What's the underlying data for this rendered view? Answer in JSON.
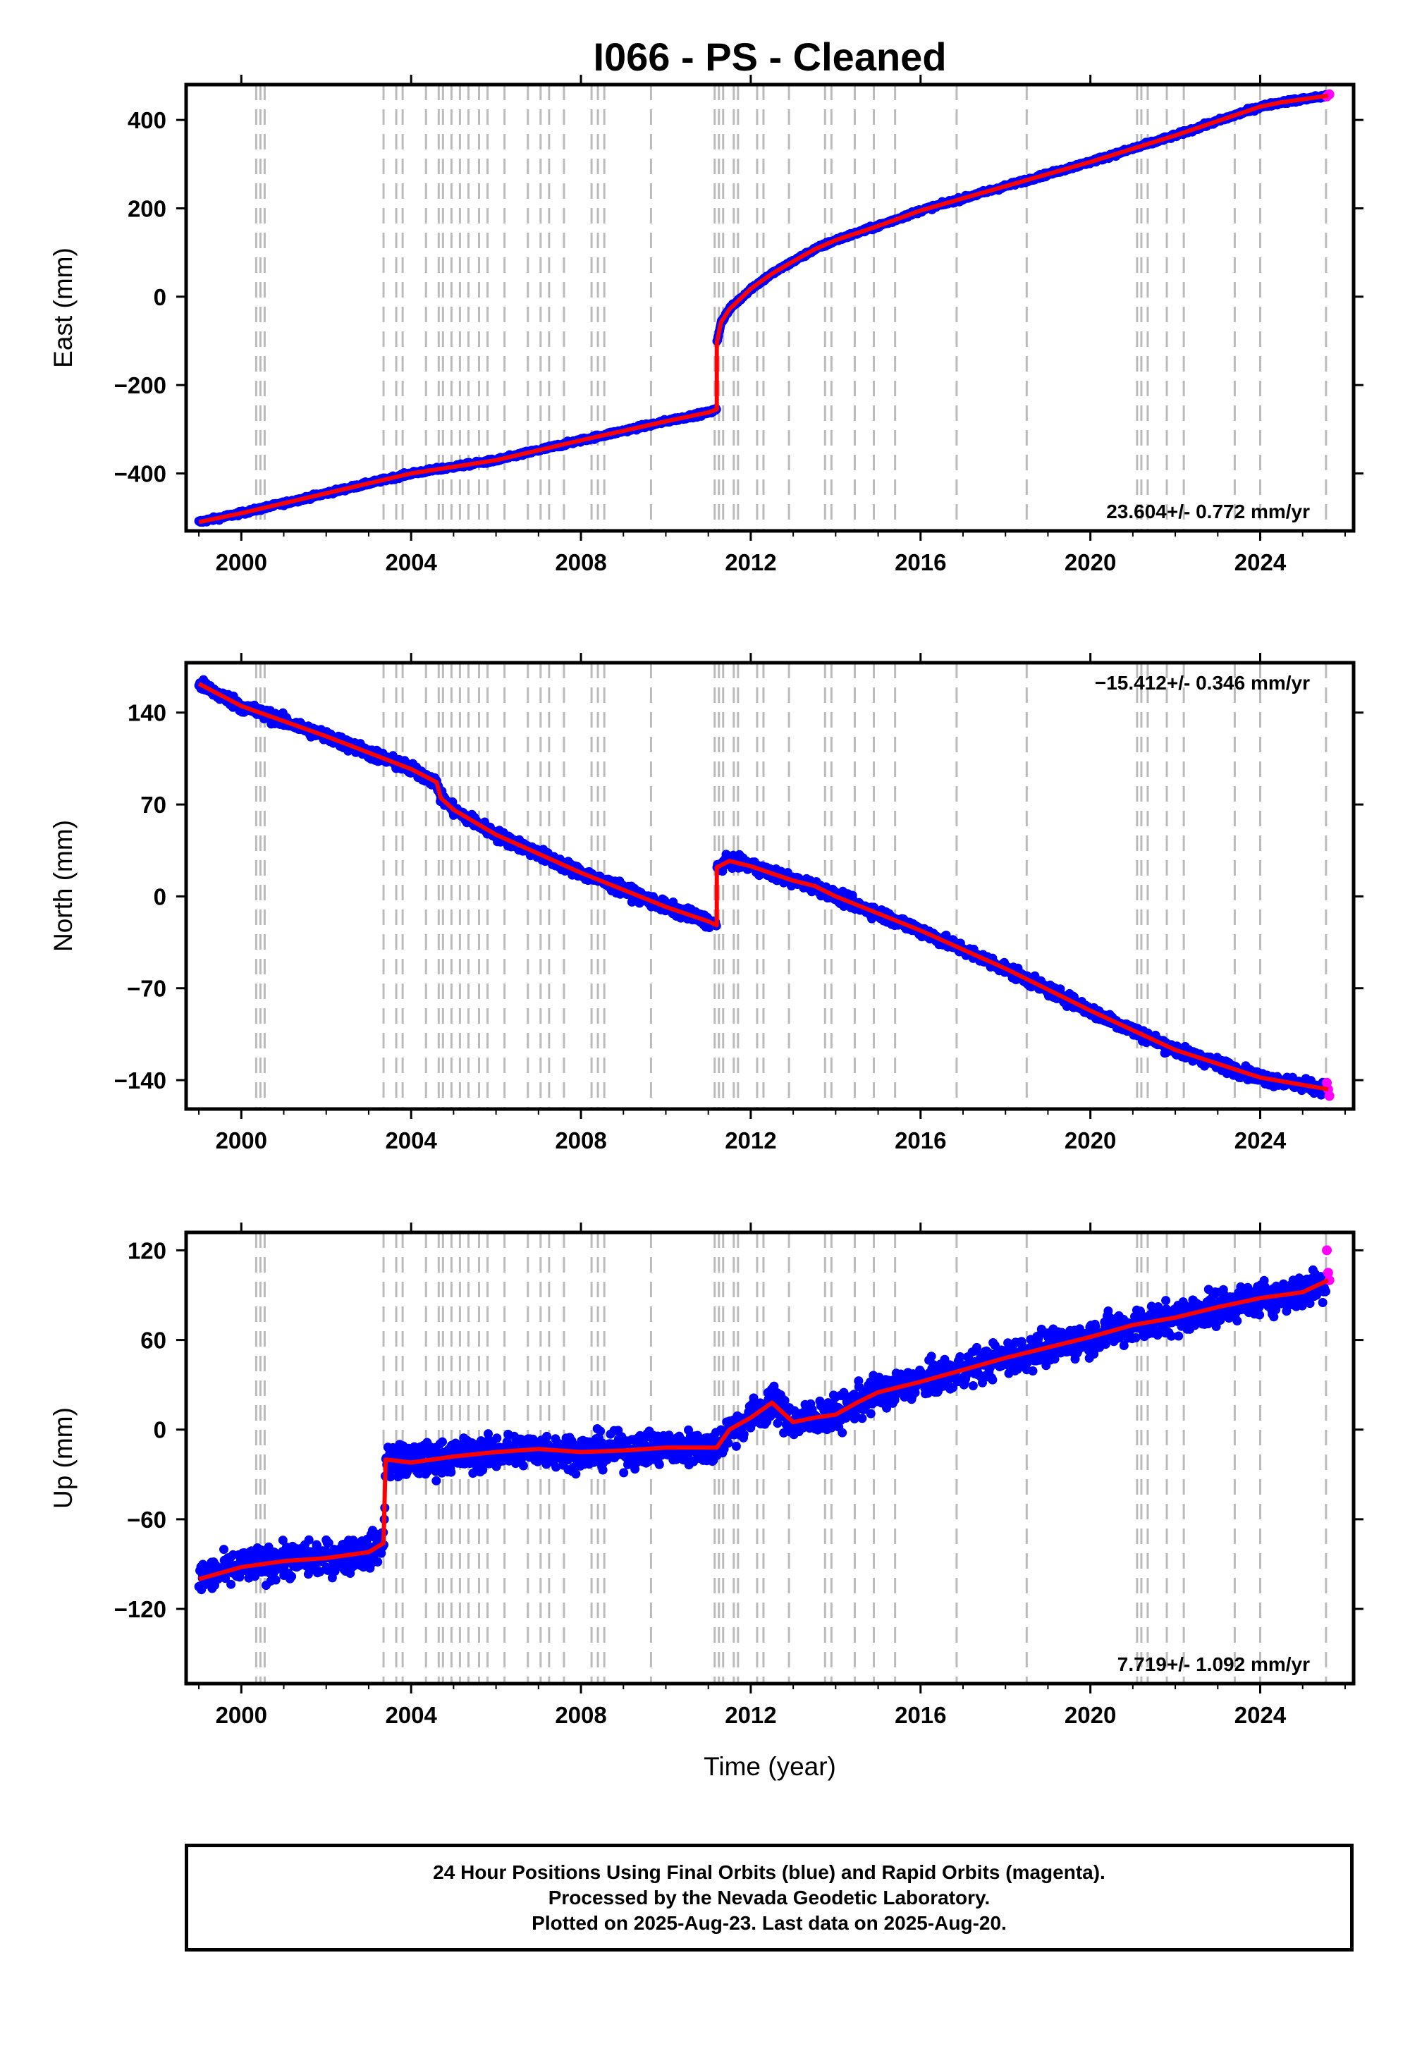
{
  "title": "I066  - PS - Cleaned",
  "colors": {
    "final_orbits": "#0000ff",
    "rapid_orbits": "#ff00ff",
    "model": "#ff0000",
    "offsets": "#bbbbbb"
  },
  "footer": {
    "line1": "24 Hour Positions Using Final Orbits (blue) and Rapid Orbits (magenta).",
    "line2": "Processed by the Nevada Geodetic Laboratory.",
    "line3": "Plotted on 2025-Aug-23. Last data on 2025-Aug-20."
  },
  "chart_data": [
    {
      "type": "scatter",
      "ylabel": "East (mm)",
      "xlabel": "",
      "xlim": [
        1998.7,
        2026.2
      ],
      "ylim": [
        -530,
        480
      ],
      "xticks": [
        2000,
        2004,
        2008,
        2012,
        2016,
        2020,
        2024
      ],
      "yticks": [
        -400,
        -200,
        0,
        200,
        400
      ],
      "rate_label": "23.604+/- 0.772 mm/yr",
      "rate_position": "bottom-right",
      "model_x": [
        1999.0,
        2000.0,
        2002.0,
        2004.0,
        2006.0,
        2008.0,
        2010.0,
        2011.0,
        2011.2,
        2011.2,
        2011.3,
        2011.5,
        2012.0,
        2012.5,
        2013.0,
        2013.5,
        2014.0,
        2015.0,
        2016.0,
        2018.0,
        2020.0,
        2022.0,
        2024.0,
        2024.5,
        2025.6
      ],
      "model_y": [
        -510,
        -490,
        -445,
        -400,
        -370,
        -325,
        -282,
        -262,
        -255,
        -105,
        -58,
        -28,
        18,
        52,
        80,
        107,
        128,
        160,
        195,
        250,
        305,
        365,
        430,
        440,
        455
      ],
      "final_orbits": {
        "x": [
          1999.0,
          2000.0,
          2001.0,
          2002.0,
          2003.0,
          2004.0,
          2005.0,
          2006.0,
          2007.0,
          2008.0,
          2009.0,
          2010.0,
          2011.0,
          2011.2,
          2011.5,
          2012.0,
          2012.5,
          2013.0,
          2014.0,
          2015.0,
          2016.0,
          2017.0,
          2018.0,
          2019.0,
          2020.0,
          2021.0,
          2022.0,
          2023.0,
          2024.0,
          2025.0,
          2025.55
        ],
        "y": [
          -510,
          -488,
          -465,
          -445,
          -422,
          -400,
          -385,
          -368,
          -345,
          -325,
          -305,
          -282,
          -265,
          -250,
          -28,
          18,
          52,
          80,
          128,
          160,
          195,
          225,
          250,
          280,
          305,
          335,
          365,
          400,
          430,
          450,
          455
        ]
      },
      "rapid_orbits": {
        "x": [
          2025.57,
          2025.6,
          2025.63
        ],
        "y": [
          453,
          456,
          458
        ]
      }
    },
    {
      "type": "scatter",
      "ylabel": "North (mm)",
      "xlabel": "",
      "xlim": [
        1998.7,
        2026.2
      ],
      "ylim": [
        -162,
        178
      ],
      "xticks": [
        2000,
        2004,
        2008,
        2012,
        2016,
        2020,
        2024
      ],
      "yticks": [
        -140,
        -70,
        0,
        70,
        140
      ],
      "rate_label": "-15.412+/- 0.346 mm/yr",
      "rate_position": "top-right",
      "model_x": [
        1999.0,
        2000.0,
        2002.0,
        2004.0,
        2004.6,
        2004.7,
        2005.0,
        2006.0,
        2008.0,
        2010.0,
        2011.0,
        2011.2,
        2011.2,
        2011.5,
        2012.0,
        2013.0,
        2013.5,
        2014.0,
        2016.0,
        2018.0,
        2020.0,
        2022.0,
        2024.0,
        2025.6
      ],
      "model_y": [
        162,
        145,
        122,
        97,
        87,
        75,
        66,
        47,
        18,
        -8,
        -19,
        -22,
        22,
        27,
        23,
        12,
        8,
        0,
        -26,
        -55,
        -87,
        -117,
        -138,
        -147
      ],
      "final_orbits": {
        "x": [
          1999.0,
          2000.0,
          2001.0,
          2002.0,
          2003.0,
          2004.0,
          2005.0,
          2006.0,
          2007.0,
          2008.0,
          2009.0,
          2010.0,
          2011.0,
          2011.2,
          2011.5,
          2012.0,
          2012.5,
          2013.0,
          2014.0,
          2015.0,
          2016.0,
          2017.0,
          2018.0,
          2019.0,
          2020.0,
          2021.0,
          2022.0,
          2023.0,
          2024.0,
          2025.0,
          2025.55
        ],
        "y": [
          162,
          146,
          134,
          122,
          110,
          97,
          66,
          47,
          32,
          18,
          5,
          -8,
          -19,
          -22,
          28,
          23,
          18,
          12,
          0,
          -12,
          -26,
          -42,
          -55,
          -70,
          -87,
          -102,
          -117,
          -128,
          -138,
          -144,
          -147
        ]
      },
      "rapid_orbits": {
        "x": [
          2025.57,
          2025.6,
          2025.63
        ],
        "y": [
          -142,
          -147,
          -152
        ]
      }
    },
    {
      "type": "scatter",
      "ylabel": "Up (mm)",
      "xlabel": "Time (year)",
      "xlim": [
        1998.7,
        2026.2
      ],
      "ylim": [
        -170,
        132
      ],
      "xticks": [
        2000,
        2004,
        2008,
        2012,
        2016,
        2020,
        2024
      ],
      "yticks": [
        -120,
        -60,
        0,
        60,
        120
      ],
      "rate_label": "7.719+/- 1.092 mm/yr",
      "rate_position": "bottom-right",
      "model_x": [
        1999.0,
        2000.0,
        2001.0,
        2002.0,
        2003.0,
        2003.35,
        2003.4,
        2004.0,
        2005.0,
        2006.0,
        2007.0,
        2008.0,
        2009.0,
        2010.0,
        2011.0,
        2011.2,
        2011.5,
        2012.0,
        2012.5,
        2013.0,
        2013.5,
        2014.0,
        2014.5,
        2015.0,
        2016.0,
        2017.0,
        2018.0,
        2019.0,
        2020.0,
        2021.0,
        2022.0,
        2023.0,
        2024.0,
        2025.0,
        2025.6
      ],
      "model_y": [
        -100,
        -92,
        -88,
        -86,
        -82,
        -76,
        -20,
        -22,
        -18,
        -15,
        -13,
        -15,
        -14,
        -12,
        -12,
        -12,
        0,
        8,
        18,
        5,
        8,
        10,
        18,
        25,
        32,
        40,
        48,
        55,
        62,
        70,
        75,
        82,
        88,
        92,
        100
      ],
      "final_orbits": {
        "x": [
          1999.0,
          2000.0,
          2001.0,
          2002.0,
          2003.0,
          2003.4,
          2004.0,
          2005.0,
          2006.0,
          2007.0,
          2008.0,
          2009.0,
          2010.0,
          2011.0,
          2011.5,
          2012.0,
          2012.5,
          2013.0,
          2013.5,
          2014.0,
          2015.0,
          2016.0,
          2017.0,
          2018.0,
          2019.0,
          2020.0,
          2021.0,
          2022.0,
          2023.0,
          2024.0,
          2025.0,
          2025.55
        ],
        "y": [
          -100,
          -92,
          -88,
          -86,
          -82,
          -20,
          -22,
          -18,
          -15,
          -13,
          -15,
          -14,
          -12,
          -12,
          0,
          8,
          18,
          5,
          8,
          10,
          25,
          32,
          40,
          48,
          55,
          62,
          70,
          75,
          82,
          88,
          92,
          100
        ]
      },
      "rapid_orbits": {
        "x": [
          2025.57,
          2025.6,
          2025.63
        ],
        "y": [
          120,
          105,
          100
        ]
      }
    }
  ],
  "offset_epochs": [
    2000.35,
    2000.45,
    2000.55,
    2003.35,
    2003.65,
    2003.8,
    2004.35,
    2004.65,
    2004.75,
    2004.95,
    2005.15,
    2005.35,
    2005.6,
    2005.8,
    2006.2,
    2006.75,
    2007.05,
    2007.25,
    2007.6,
    2008.25,
    2008.4,
    2008.55,
    2009.65,
    2011.15,
    2011.25,
    2011.35,
    2011.6,
    2011.7,
    2012.15,
    2012.3,
    2012.9,
    2013.75,
    2013.9,
    2014.45,
    2014.9,
    2015.4,
    2016.85,
    2018.5,
    2021.1,
    2021.2,
    2021.35,
    2021.8,
    2022.2,
    2023.4,
    2024.0,
    2025.55
  ]
}
